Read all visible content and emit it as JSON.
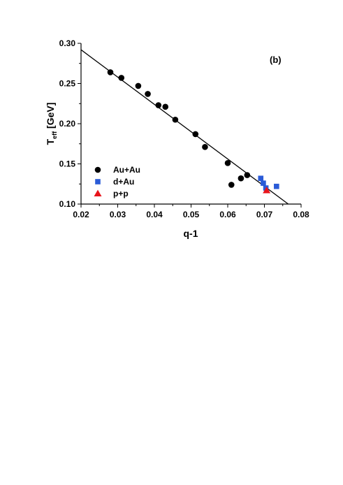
{
  "chart_data": {
    "type": "scatter",
    "panel_label": "(b)",
    "xlabel": "q-1",
    "ylabel_main": "T",
    "ylabel_sub": "eff",
    "ylabel_unit": " [GeV]",
    "xlim": [
      0.02,
      0.08
    ],
    "ylim": [
      0.1,
      0.3
    ],
    "x_ticks": [
      "0.02",
      "0.03",
      "0.04",
      "0.05",
      "0.06",
      "0.07",
      "0.08"
    ],
    "y_ticks": [
      "0.10",
      "0.15",
      "0.20",
      "0.25",
      "0.30"
    ],
    "legend_position": "bottom-left",
    "fit_line": {
      "x": [
        0.02,
        0.0765
      ],
      "y": [
        0.292,
        0.1
      ]
    },
    "series": [
      {
        "name": "Au+Au",
        "marker": "circle",
        "color": "#000000",
        "points": [
          [
            0.028,
            0.264
          ],
          [
            0.031,
            0.257
          ],
          [
            0.0356,
            0.247
          ],
          [
            0.0382,
            0.237
          ],
          [
            0.0411,
            0.223
          ],
          [
            0.043,
            0.221
          ],
          [
            0.0457,
            0.205
          ],
          [
            0.0512,
            0.187
          ],
          [
            0.0538,
            0.171
          ],
          [
            0.06,
            0.151
          ],
          [
            0.061,
            0.124
          ],
          [
            0.0636,
            0.132
          ],
          [
            0.0653,
            0.136
          ]
        ]
      },
      {
        "name": "d+Au",
        "marker": "square",
        "color": "#2a5bd7",
        "points": [
          [
            0.069,
            0.132
          ],
          [
            0.0697,
            0.126
          ],
          [
            0.0704,
            0.12
          ],
          [
            0.0733,
            0.122
          ]
        ]
      },
      {
        "name": "p+p",
        "marker": "triangle",
        "color": "#e8141b",
        "points": [
          [
            0.0706,
            0.117
          ]
        ]
      }
    ]
  }
}
